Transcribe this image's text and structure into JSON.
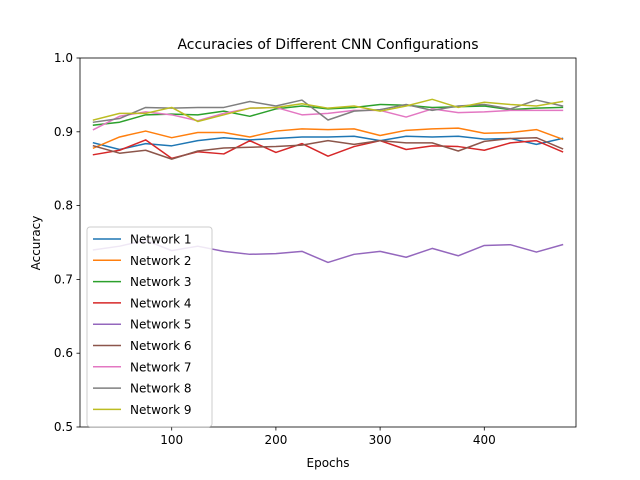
{
  "chart_data": {
    "type": "line",
    "title": "Accuracies of Different CNN Configurations",
    "xlabel": "Epochs",
    "ylabel": "Accuracy",
    "xlim": [
      12,
      488
    ],
    "ylim": [
      0.5,
      1.0
    ],
    "xticks": [
      100,
      200,
      300,
      400
    ],
    "yticks": [
      0.5,
      0.6,
      0.7,
      0.8,
      0.9,
      1.0
    ],
    "xtick_labels": [
      "100",
      "200",
      "300",
      "400"
    ],
    "ytick_labels": [
      "0.5",
      "0.6",
      "0.7",
      "0.8",
      "0.9",
      "1.0"
    ],
    "grid": false,
    "legend_position": "lower-left",
    "x": [
      25,
      50,
      75,
      100,
      125,
      150,
      175,
      200,
      225,
      250,
      275,
      300,
      325,
      350,
      375,
      400,
      425,
      450,
      475
    ],
    "series": [
      {
        "name": "Network 1",
        "color": "#1f77b4",
        "values": [
          0.885,
          0.876,
          0.884,
          0.881,
          0.888,
          0.892,
          0.889,
          0.891,
          0.893,
          0.893,
          0.894,
          0.888,
          0.894,
          0.893,
          0.894,
          0.89,
          0.891,
          0.883,
          0.891
        ]
      },
      {
        "name": "Network 2",
        "color": "#ff7f0e",
        "values": [
          0.878,
          0.893,
          0.901,
          0.892,
          0.899,
          0.899,
          0.893,
          0.901,
          0.904,
          0.903,
          0.904,
          0.895,
          0.902,
          0.904,
          0.905,
          0.898,
          0.899,
          0.903,
          0.89
        ]
      },
      {
        "name": "Network 3",
        "color": "#2ca02c",
        "values": [
          0.909,
          0.913,
          0.923,
          0.924,
          0.923,
          0.928,
          0.921,
          0.931,
          0.935,
          0.931,
          0.933,
          0.937,
          0.936,
          0.933,
          0.934,
          0.935,
          0.93,
          0.932,
          0.933
        ]
      },
      {
        "name": "Network 4",
        "color": "#d62728",
        "values": [
          0.869,
          0.875,
          0.889,
          0.864,
          0.873,
          0.87,
          0.888,
          0.872,
          0.884,
          0.867,
          0.88,
          0.888,
          0.876,
          0.881,
          0.88,
          0.875,
          0.885,
          0.888,
          0.873
        ]
      },
      {
        "name": "Network 5",
        "color": "#9467bd",
        "values": [
          0.74,
          0.745,
          0.753,
          0.739,
          0.745,
          0.738,
          0.734,
          0.735,
          0.738,
          0.723,
          0.734,
          0.738,
          0.73,
          0.742,
          0.732,
          0.746,
          0.747,
          0.737,
          0.747
        ]
      },
      {
        "name": "Network 6",
        "color": "#8c564b",
        "values": [
          0.881,
          0.871,
          0.875,
          0.863,
          0.874,
          0.878,
          0.879,
          0.88,
          0.882,
          0.888,
          0.883,
          0.888,
          0.885,
          0.885,
          0.874,
          0.887,
          0.891,
          0.892,
          0.877
        ]
      },
      {
        "name": "Network 7",
        "color": "#e377c2",
        "values": [
          0.903,
          0.921,
          0.927,
          0.923,
          0.915,
          0.925,
          0.932,
          0.933,
          0.923,
          0.925,
          0.929,
          0.929,
          0.92,
          0.931,
          0.926,
          0.927,
          0.929,
          0.929,
          0.929
        ]
      },
      {
        "name": "Network 8",
        "color": "#7f7f7f",
        "values": [
          0.913,
          0.918,
          0.933,
          0.932,
          0.933,
          0.933,
          0.941,
          0.935,
          0.943,
          0.916,
          0.928,
          0.93,
          0.937,
          0.929,
          0.935,
          0.937,
          0.931,
          0.943,
          0.935
        ]
      },
      {
        "name": "Network 9",
        "color": "#bcbd22",
        "values": [
          0.916,
          0.925,
          0.925,
          0.933,
          0.914,
          0.923,
          0.932,
          0.933,
          0.938,
          0.932,
          0.935,
          0.928,
          0.935,
          0.944,
          0.933,
          0.94,
          0.937,
          0.935,
          0.941
        ]
      }
    ]
  }
}
